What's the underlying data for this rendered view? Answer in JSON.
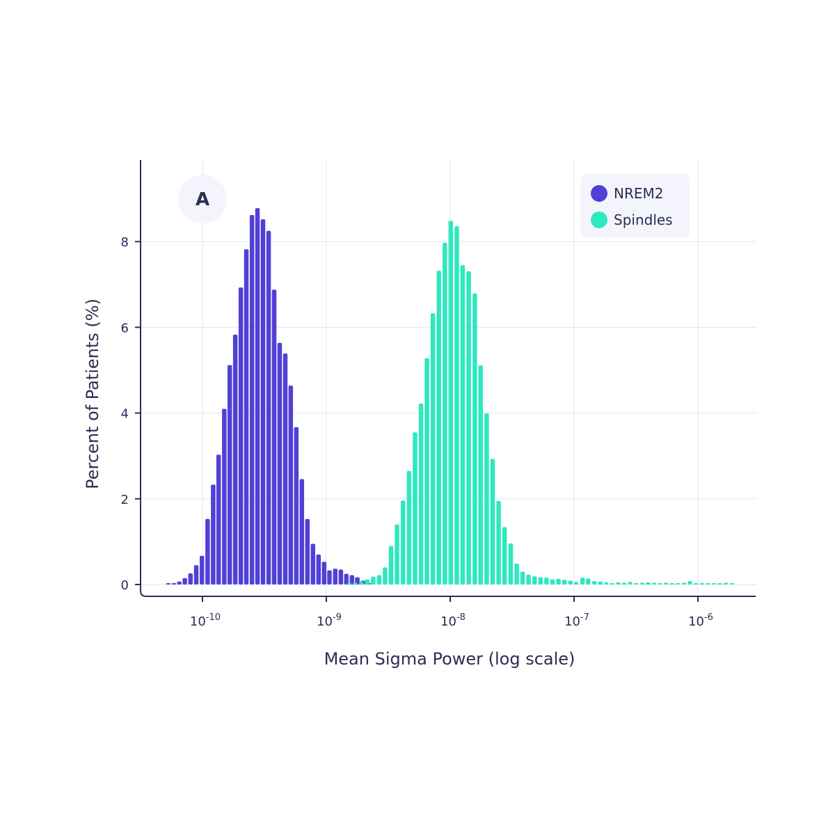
{
  "chart_data": {
    "type": "bar",
    "panel_label": "A",
    "xlabel": "Mean Sigma Power (log scale)",
    "ylabel": "Percent of Patients (%)",
    "x_scale": "log",
    "xlim": [
      2.5e-11,
      5e-06
    ],
    "ylim": [
      -0.3,
      9.9
    ],
    "x_ticks": [
      {
        "value": 1e-10,
        "base": "10",
        "exp": "-10"
      },
      {
        "value": 1e-09,
        "base": "10",
        "exp": "-9"
      },
      {
        "value": 1e-08,
        "base": "10",
        "exp": "-8"
      },
      {
        "value": 1e-07,
        "base": "10",
        "exp": "-7"
      },
      {
        "value": 1e-06,
        "base": "10",
        "exp": "-6"
      }
    ],
    "y_ticks": [
      0,
      2,
      4,
      6,
      8
    ],
    "grid": true,
    "legend_position": "top-right",
    "series": [
      {
        "name": "NREM2",
        "color": "#5140d6",
        "x": [
          5.3e-11,
          5.9e-11,
          6.5e-11,
          7.2e-11,
          8e-11,
          8.9e-11,
          9.9e-11,
          1.1e-10,
          1.22e-10,
          1.35e-10,
          1.5e-10,
          1.66e-10,
          1.84e-10,
          2.04e-10,
          2.26e-10,
          2.51e-10,
          2.78e-10,
          3.08e-10,
          3.42e-10,
          3.79e-10,
          4.2e-10,
          4.66e-10,
          5.16e-10,
          5.72e-10,
          6.34e-10,
          7.03e-10,
          7.8e-10,
          8.65e-10,
          9.59e-10,
          1.06e-09,
          1.18e-09,
          1.31e-09,
          1.45e-09,
          1.61e-09,
          1.78e-09,
          1.97e-09,
          2.19e-09
        ],
        "values": [
          0.02,
          0.03,
          0.07,
          0.15,
          0.26,
          0.45,
          0.67,
          1.53,
          2.33,
          3.03,
          4.1,
          5.12,
          5.83,
          6.93,
          7.82,
          8.62,
          8.78,
          8.52,
          8.25,
          6.88,
          5.64,
          5.39,
          4.64,
          3.67,
          2.46,
          1.53,
          0.95,
          0.7,
          0.53,
          0.33,
          0.37,
          0.35,
          0.25,
          0.22,
          0.17,
          0.09,
          0.04
        ]
      },
      {
        "name": "Spindles",
        "color": "#2ee8bf",
        "x": [
          1.53e-09,
          1.71e-09,
          1.92e-09,
          2.14e-09,
          2.39e-09,
          2.67e-09,
          2.98e-09,
          3.33e-09,
          3.72e-09,
          4.16e-09,
          4.65e-09,
          5.2e-09,
          5.81e-09,
          6.49e-09,
          7.25e-09,
          8.1e-09,
          9.06e-09,
          1.01e-08,
          1.13e-08,
          1.26e-08,
          1.41e-08,
          1.58e-08,
          1.76e-08,
          1.97e-08,
          2.2e-08,
          2.46e-08,
          2.75e-08,
          3.08e-08,
          3.44e-08,
          3.84e-08,
          4.29e-08,
          4.8e-08,
          5.36e-08,
          5.99e-08,
          6.7e-08,
          7.48e-08,
          8.36e-08,
          9.34e-08,
          1.04e-07,
          1.17e-07,
          1.3e-07,
          1.46e-07,
          1.63e-07,
          1.82e-07,
          2.03e-07,
          2.27e-07,
          2.54e-07,
          2.84e-07,
          3.17e-07,
          3.55e-07,
          3.96e-07,
          4.43e-07,
          4.95e-07,
          5.53e-07,
          6.18e-07,
          6.9e-07,
          7.71e-07,
          8.62e-07,
          9.63e-07,
          1.08e-06,
          1.2e-06,
          1.34e-06,
          1.5e-06,
          1.68e-06,
          1.88e-06
        ],
        "values": [
          0.02,
          0.04,
          0.07,
          0.12,
          0.18,
          0.22,
          0.4,
          0.9,
          1.4,
          1.96,
          2.65,
          3.55,
          4.22,
          5.28,
          6.33,
          7.32,
          7.97,
          8.48,
          8.36,
          7.45,
          7.31,
          6.79,
          5.11,
          3.99,
          2.93,
          1.95,
          1.34,
          0.96,
          0.49,
          0.3,
          0.23,
          0.19,
          0.17,
          0.16,
          0.12,
          0.13,
          0.11,
          0.09,
          0.06,
          0.16,
          0.14,
          0.08,
          0.07,
          0.05,
          0.03,
          0.05,
          0.04,
          0.06,
          0.03,
          0.04,
          0.05,
          0.04,
          0.03,
          0.04,
          0.03,
          0.03,
          0.04,
          0.08,
          0.03,
          0.03,
          0.02,
          0.03,
          0.02,
          0.04,
          0.02
        ]
      }
    ]
  }
}
